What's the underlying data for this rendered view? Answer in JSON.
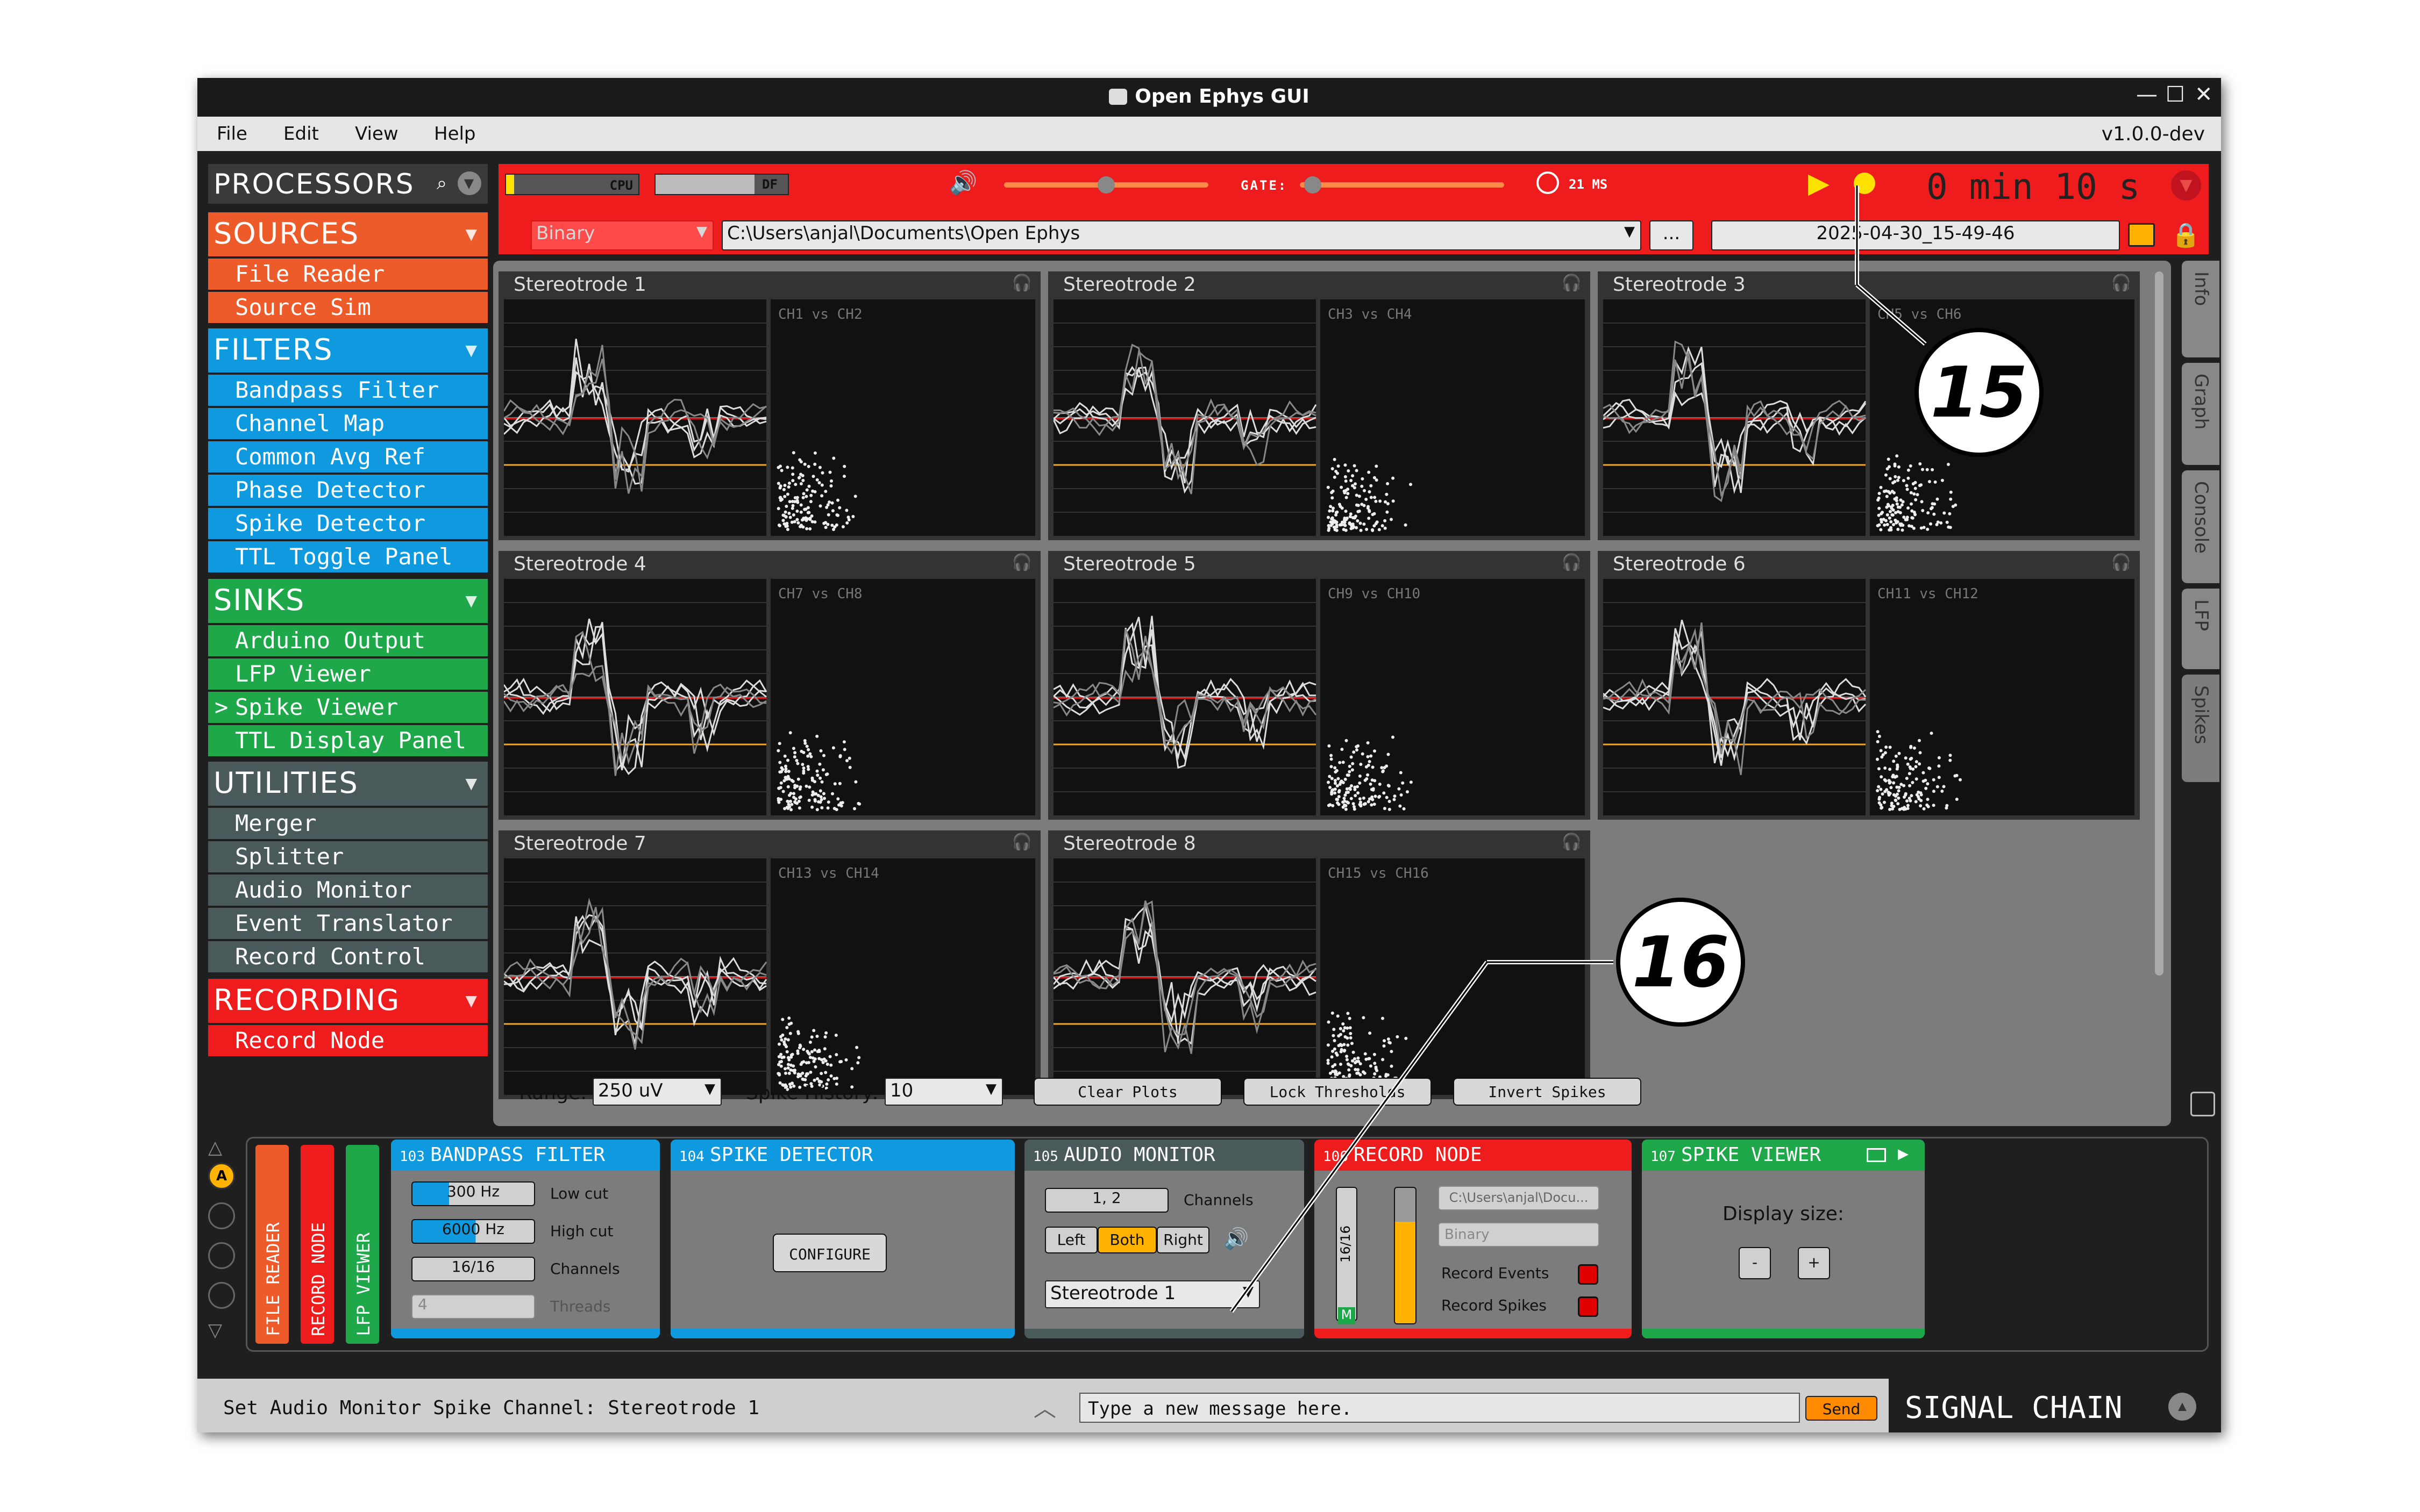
{
  "window": {
    "title": "Open Ephys GUI",
    "version": "v1.0.0-dev",
    "controls": {
      "minimize": "—",
      "maximize": "☐",
      "close": "✕"
    }
  },
  "menu": {
    "items": [
      "File",
      "Edit",
      "View",
      "Help"
    ]
  },
  "sidebar": {
    "title": "PROCESSORS",
    "sections": [
      {
        "name": "SOURCES",
        "color": "#ee5b2b",
        "items": [
          "File Reader",
          "Source Sim"
        ]
      },
      {
        "name": "FILTERS",
        "color": "#0f9ae0",
        "items": [
          "Bandpass Filter",
          "Channel Map",
          "Common Avg Ref",
          "Phase Detector",
          "Spike Detector",
          "TTL Toggle Panel"
        ]
      },
      {
        "name": "SINKS",
        "color": "#1fa84a",
        "items": [
          "Arduino Output",
          "LFP Viewer",
          "Spike Viewer",
          "TTL Display Panel"
        ],
        "selected_prefix": ">"
      },
      {
        "name": "UTILITIES",
        "color": "#4a5a5a",
        "items": [
          "Merger",
          "Splitter",
          "Audio Monitor",
          "Event Translator",
          "Record Control"
        ]
      },
      {
        "name": "RECORDING",
        "color": "#ee1c1c",
        "items": [
          "Record Node"
        ]
      }
    ]
  },
  "toolbar": {
    "cpu_label": "CPU",
    "df_label": "DF",
    "cpu_level": 0.06,
    "volume_level": 0.5,
    "gate_label": "GATE:",
    "gate_level": 0.02,
    "latency": "21 MS",
    "timer": "0 min 10 s",
    "record_format": "Binary",
    "record_path": "C:\\Users\\anjal\\Documents\\Open Ephys",
    "browse_label": "...",
    "record_dir": "2025-04-30_15-49-46"
  },
  "viewer": {
    "panels": [
      {
        "title": "Stereotrode 1",
        "pair": "CH1 vs CH2"
      },
      {
        "title": "Stereotrode 2",
        "pair": "CH3 vs CH4"
      },
      {
        "title": "Stereotrode 3",
        "pair": "CH5 vs CH6"
      },
      {
        "title": "Stereotrode 4",
        "pair": "CH7 vs CH8"
      },
      {
        "title": "Stereotrode 5",
        "pair": "CH9 vs CH10"
      },
      {
        "title": "Stereotrode 6",
        "pair": "CH11 vs CH12"
      },
      {
        "title": "Stereotrode 7",
        "pair": "CH13 vs CH14"
      },
      {
        "title": "Stereotrode 8",
        "pair": "CH15 vs CH16"
      }
    ],
    "range_label": "Range:",
    "range_value": "250 uV",
    "history_label": "Spike History:",
    "history_value": "10",
    "clear_label": "Clear Plots",
    "lock_label": "Lock Thresholds",
    "invert_label": "Invert Spikes"
  },
  "side_tabs": [
    "Info",
    "Graph",
    "Console",
    "LFP",
    "Spikes"
  ],
  "signal_chain": {
    "tabs": [
      "FILE READER",
      "RECORD NODE",
      "LFP VIEWER"
    ],
    "selected_chain": "A",
    "editors": [
      {
        "num": "103",
        "name": "BANDPASS FILTER",
        "low_cut": "300 Hz",
        "low_label": "Low cut",
        "high_cut": "6000 Hz",
        "high_label": "High cut",
        "channels": "16/16",
        "channels_label": "Channels",
        "threads": "4",
        "threads_label": "Threads"
      },
      {
        "num": "104",
        "name": "SPIKE DETECTOR",
        "configure": "CONFIGURE"
      },
      {
        "num": "105",
        "name": "AUDIO MONITOR",
        "channels": "1, 2",
        "channels_label": "Channels",
        "left": "Left",
        "both": "Both",
        "right": "Right",
        "stereotrode": "Stereotrode 1"
      },
      {
        "num": "106",
        "name": "RECORD NODE",
        "path": "C:\\Users\\anjal\\Docu...",
        "format": "Binary",
        "events_label": "Record Events",
        "spikes_label": "Record Spikes",
        "channels": "16/16",
        "m_label": "M"
      },
      {
        "num": "107",
        "name": "SPIKE VIEWER",
        "display_label": "Display size:",
        "minus": "-",
        "plus": "+"
      }
    ],
    "button_label": "SIGNAL CHAIN"
  },
  "status": {
    "message": "Set Audio Monitor Spike Channel: Stereotrode 1",
    "input_placeholder": "Type a new message here.",
    "send_label": "Send"
  },
  "callouts": {
    "c15": "15",
    "c16": "16"
  }
}
